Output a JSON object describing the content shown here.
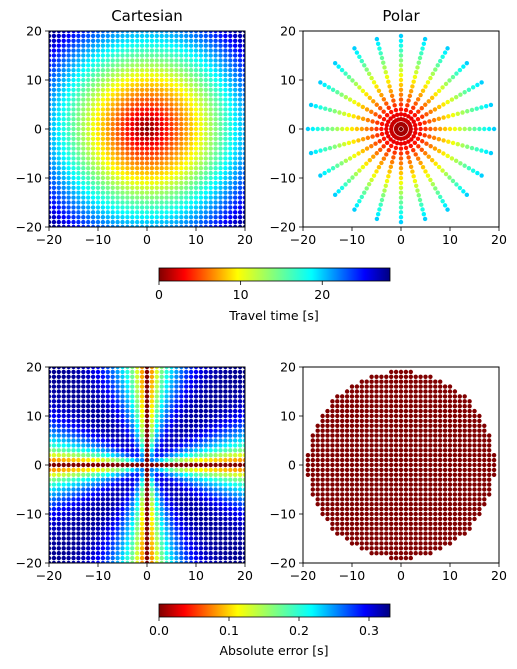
{
  "chart_data": [
    {
      "type": "scatter",
      "title": "Cartesian",
      "grid": "cartesian",
      "field": "travel_time",
      "x_range": [
        -20,
        20
      ],
      "y_range": [
        -20,
        20
      ],
      "grid_step": 1,
      "xticks": [
        -20,
        -10,
        0,
        10,
        20
      ],
      "yticks": [
        -20,
        -10,
        0,
        10,
        20
      ],
      "xtick_labels": [
        "−20",
        "−10",
        "0",
        "10",
        "20"
      ],
      "ytick_labels": [
        "−20",
        "−10",
        "0",
        "10",
        "20"
      ],
      "colorbar": "travel_time"
    },
    {
      "type": "scatter",
      "title": "Polar",
      "grid": "polar",
      "field": "travel_time",
      "n_rays": 24,
      "radius_max": 19,
      "radius_step": 1,
      "x_range": [
        -20,
        20
      ],
      "y_range": [
        -20,
        20
      ],
      "xticks": [
        -20,
        -10,
        0,
        10,
        20
      ],
      "yticks": [
        -20,
        -10,
        0,
        10,
        20
      ],
      "xtick_labels": [
        "−20",
        "−10",
        "0",
        "10",
        "20"
      ],
      "ytick_labels": [
        "−20",
        "−10",
        "0",
        "10",
        "20"
      ],
      "colorbar": "travel_time"
    },
    {
      "type": "scatter",
      "title": "",
      "grid": "cartesian",
      "field": "absolute_error",
      "x_range": [
        -20,
        20
      ],
      "y_range": [
        -20,
        20
      ],
      "grid_step": 1,
      "xticks": [
        -20,
        -10,
        0,
        10,
        20
      ],
      "yticks": [
        -20,
        -10,
        0,
        10,
        20
      ],
      "xtick_labels": [
        "−20",
        "−10",
        "0",
        "10",
        "20"
      ],
      "ytick_labels": [
        "−20",
        "−10",
        "0",
        "10",
        "20"
      ],
      "colorbar": "absolute_error"
    },
    {
      "type": "scatter",
      "title": "",
      "grid": "cartesian_clipped",
      "field": "absolute_error_zero",
      "clip_radius": 19,
      "x_range": [
        -20,
        20
      ],
      "y_range": [
        -20,
        20
      ],
      "grid_step": 1,
      "xticks": [
        -20,
        -10,
        0,
        10,
        20
      ],
      "yticks": [
        -20,
        -10,
        0,
        10,
        20
      ],
      "xtick_labels": [
        "−20",
        "−10",
        "0",
        "10",
        "20"
      ],
      "ytick_labels": [
        "−20",
        "−10",
        "0",
        "10",
        "20"
      ],
      "colorbar": "absolute_error"
    }
  ],
  "colorbars": {
    "travel_time": {
      "label": "Travel time [s]",
      "range": [
        0,
        28.3
      ],
      "ticks": [
        0,
        10,
        20
      ],
      "tick_labels": [
        "0",
        "10",
        "20"
      ],
      "colormap": "jet_r"
    },
    "absolute_error": {
      "label": "Absolute error [s]",
      "range": [
        0,
        0.33
      ],
      "ticks": [
        0,
        0.1,
        0.2,
        0.3
      ],
      "tick_labels": [
        "0.0",
        "0.1",
        "0.2",
        "0.3"
      ],
      "colormap": "jet_r"
    }
  }
}
